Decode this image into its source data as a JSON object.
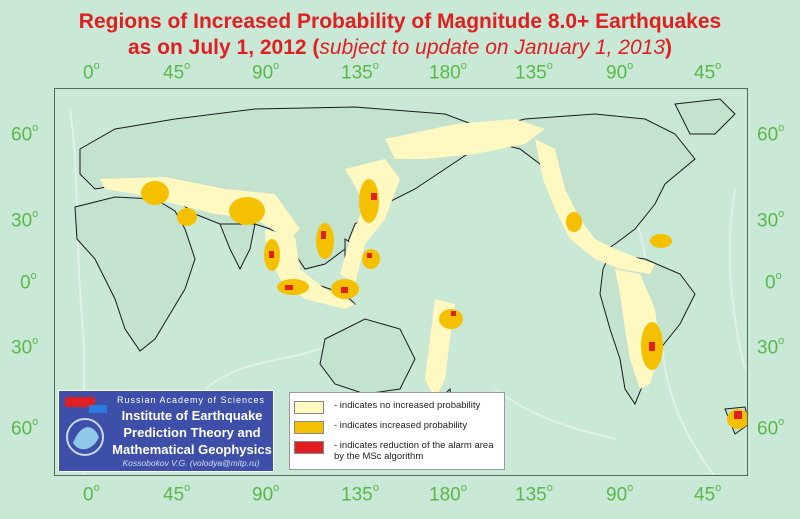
{
  "title": {
    "line1": "Regions of Increased Probability of Magnitude 8.0+ Earthquakes",
    "line2": "as on July 1, 2012",
    "line2_paren_open": " (",
    "line2_italic": "subject to update on January 1, 2013",
    "line2_paren_close": ")"
  },
  "longitude_labels": [
    "0",
    "45",
    "90",
    "135",
    "180",
    "135",
    "90",
    "45"
  ],
  "latitude_labels_left": [
    "60",
    "30",
    "0",
    "30",
    "60"
  ],
  "latitude_labels_right": [
    "60",
    "30",
    "0",
    "30",
    "60"
  ],
  "degree_symbol": "o",
  "logo": {
    "academy": "Russian Academy of Sciences",
    "institute": "Institute of Earthquake Prediction Theory and Mathematical Geophysics",
    "author": "Kossobokov V.G. (volodya@mitp.ru)"
  },
  "legend": {
    "items": [
      {
        "color": "#fff8c0",
        "text": "- indicates no increased probability"
      },
      {
        "color": "#f5c000",
        "text": "- indicates increased probability"
      },
      {
        "color": "#e02020",
        "text": "- indicates reduction of the alarm area by the MSc algorithm"
      }
    ]
  },
  "colors": {
    "ocean": "#c9e8d6",
    "land_border": "#1a1a1a",
    "label_green": "#5ab84a",
    "title_red": "#e02020",
    "logo_blue": "#3d4fa8"
  }
}
